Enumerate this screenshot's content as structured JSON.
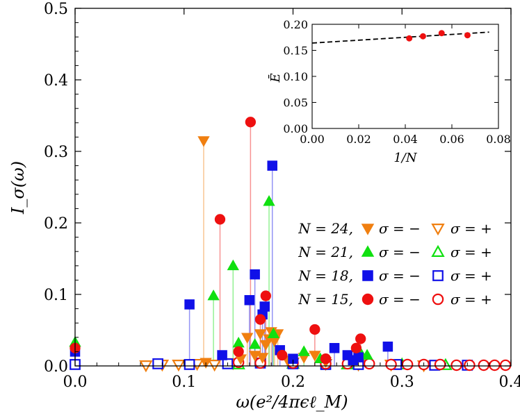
{
  "chart_data": [
    {
      "type": "scatter",
      "style": "stem",
      "title": "",
      "xlabel": "ω(e²/4πϵℓ_M)",
      "ylabel": "I_σ(ω)",
      "xlim": [
        0.0,
        0.4
      ],
      "ylim": [
        0.0,
        0.5
      ],
      "xticks": [
        "0.0",
        "0.1",
        "0.2",
        "0.3",
        "0.4"
      ],
      "yticks": [
        "0.0",
        "0.1",
        "0.2",
        "0.3",
        "0.4",
        "0.5"
      ],
      "grid": false,
      "legend_position": "center-right",
      "legend_rows": [
        {
          "n_label": "N = 24,",
          "minus_label": "σ = −",
          "plus_label": "σ = +",
          "color": "#f07f10",
          "marker": "triangle-down"
        },
        {
          "n_label": "N = 21,",
          "minus_label": "σ = −",
          "plus_label": "σ = +",
          "color": "#10e010",
          "marker": "triangle-up"
        },
        {
          "n_label": "N = 18,",
          "minus_label": "σ = −",
          "plus_label": "σ = +",
          "color": "#1010e8",
          "marker": "square"
        },
        {
          "n_label": "N = 15,",
          "minus_label": "σ = −",
          "plus_label": "σ = +",
          "color": "#ee1010",
          "marker": "circle"
        }
      ],
      "series": [
        {
          "name": "N = 24, σ = −",
          "color": "#f07f10",
          "marker": "triangle-down",
          "filled": true,
          "x": [
            0.118,
            0.158,
            0.17,
            0.175,
            0.178,
            0.18,
            0.183,
            0.186,
            0.12,
            0.152,
            0.165,
            0.172,
            0.195,
            0.21,
            0.22,
            0.23
          ],
          "y": [
            0.315,
            0.04,
            0.045,
            0.03,
            0.038,
            0.048,
            0.035,
            0.045,
            0.005,
            0.01,
            0.015,
            0.012,
            0.008,
            0.012,
            0.015,
            0.006
          ]
        },
        {
          "name": "N = 24, σ = +",
          "color": "#f07f10",
          "marker": "triangle-down",
          "filled": false,
          "x": [
            0.065,
            0.08,
            0.095,
            0.112,
            0.128,
            0.145,
            0.2,
            0.23,
            0.26,
            0.29,
            0.32
          ],
          "y": [
            0.001,
            0.002,
            0.002,
            0.003,
            0.002,
            0.004,
            0.005,
            0.003,
            0.002,
            0.002,
            0.001
          ]
        },
        {
          "name": "N = 21, σ = −",
          "color": "#10e010",
          "marker": "triangle-up",
          "filled": true,
          "x": [
            0.127,
            0.145,
            0.15,
            0.165,
            0.178,
            0.182,
            0.21,
            0.225,
            0.262,
            0.268,
            0.0
          ],
          "y": [
            0.098,
            0.14,
            0.032,
            0.03,
            0.23,
            0.045,
            0.02,
            0.01,
            0.018,
            0.015,
            0.033
          ]
        },
        {
          "name": "N = 21, σ = +",
          "color": "#10e010",
          "marker": "triangle-up",
          "filled": false,
          "x": [
            0.15,
            0.2,
            0.25,
            0.3,
            0.34
          ],
          "y": [
            0.002,
            0.003,
            0.002,
            0.002,
            0.001
          ]
        },
        {
          "name": "N = 18, σ = −",
          "color": "#1010e8",
          "marker": "square",
          "filled": true,
          "x": [
            0.105,
            0.16,
            0.165,
            0.172,
            0.174,
            0.181,
            0.188,
            0.2,
            0.238,
            0.25,
            0.255,
            0.26,
            0.287,
            0.135,
            0.0
          ],
          "y": [
            0.086,
            0.092,
            0.128,
            0.072,
            0.083,
            0.28,
            0.022,
            0.01,
            0.025,
            0.015,
            0.008,
            0.012,
            0.027,
            0.015,
            0.02
          ]
        },
        {
          "name": "N = 18, σ = +",
          "color": "#1010e8",
          "marker": "square",
          "filled": false,
          "x": [
            0.076,
            0.105,
            0.14,
            0.17,
            0.2,
            0.23,
            0.26,
            0.295,
            0.33,
            0.36,
            0.0
          ],
          "y": [
            0.003,
            0.002,
            0.003,
            0.004,
            0.003,
            0.002,
            0.002,
            0.002,
            0.001,
            0.001,
            0.002
          ]
        },
        {
          "name": "N = 15, σ = −",
          "color": "#ee1010",
          "marker": "circle",
          "filled": true,
          "x": [
            0.133,
            0.161,
            0.17,
            0.175,
            0.22,
            0.262,
            0.258,
            0.15,
            0.19,
            0.23,
            0.0
          ],
          "y": [
            0.205,
            0.341,
            0.065,
            0.098,
            0.051,
            0.038,
            0.025,
            0.02,
            0.015,
            0.01,
            0.025
          ]
        },
        {
          "name": "N = 15, σ = +",
          "color": "#ee1010",
          "marker": "circle",
          "filled": false,
          "x": [
            0.15,
            0.17,
            0.2,
            0.23,
            0.25,
            0.27,
            0.29,
            0.305,
            0.32,
            0.335,
            0.35,
            0.362,
            0.375,
            0.385,
            0.395
          ],
          "y": [
            0.005,
            0.004,
            0.004,
            0.003,
            0.003,
            0.003,
            0.002,
            0.002,
            0.002,
            0.002,
            0.001,
            0.001,
            0.001,
            0.001,
            0.001
          ]
        }
      ]
    },
    {
      "type": "scatter",
      "title": "",
      "xlabel": "1/N",
      "ylabel": "Ē",
      "xlim": [
        0.0,
        0.08
      ],
      "ylim": [
        0.0,
        0.2
      ],
      "xticks": [
        "0.00",
        "0.02",
        "0.04",
        "0.06",
        "0.08"
      ],
      "yticks": [
        "0.00",
        "0.05",
        "0.10",
        "0.15",
        "0.20"
      ],
      "points": {
        "color": "#ee1010",
        "x": [
          0.0417,
          0.0476,
          0.0556,
          0.0667
        ],
        "y": [
          0.173,
          0.177,
          0.183,
          0.179
        ]
      },
      "fit_line": {
        "style": "dashed",
        "x": [
          0.0,
          0.076
        ],
        "y": [
          0.164,
          0.185
        ]
      }
    }
  ]
}
